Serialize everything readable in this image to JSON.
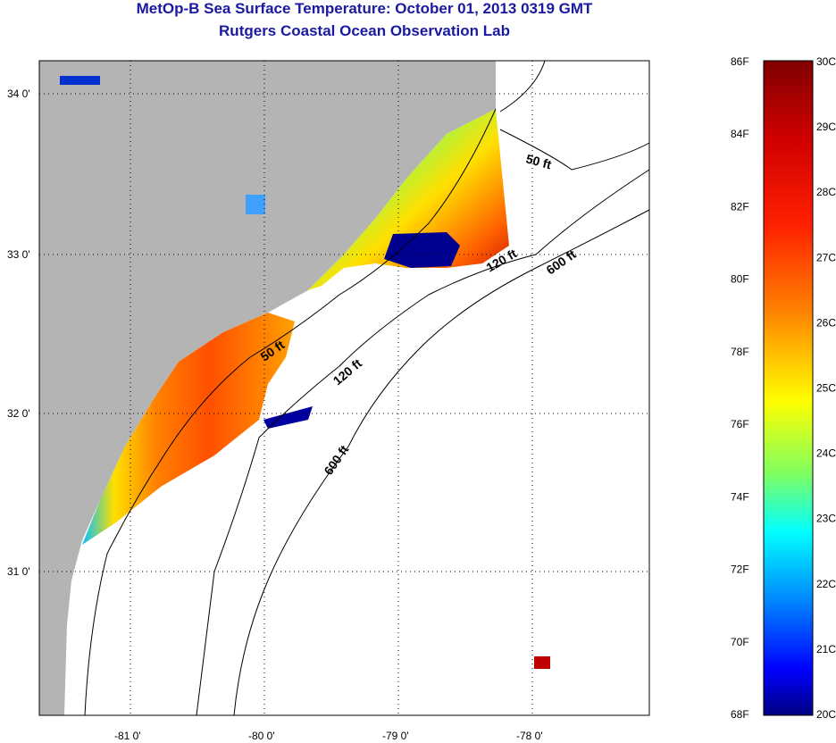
{
  "title": "MetOp-B Sea Surface Temperature:  October 01, 2013 0319 GMT",
  "subtitle": "Rutgers Coastal Ocean Observation Lab",
  "map": {
    "lat_ticks": [
      "34 0'",
      "33 0'",
      "32 0'",
      "31 0'"
    ],
    "lon_ticks": [
      "-81 0'",
      "-80 0'",
      "-79 0'",
      "-78 0'"
    ],
    "contour_labels": [
      "50 ft",
      "120 ft",
      "600 ft",
      "50 ft",
      "120 ft",
      "600 ft"
    ]
  },
  "colorbar": {
    "f_labels": [
      "86F",
      "84F",
      "82F",
      "80F",
      "78F",
      "76F",
      "74F",
      "72F",
      "70F",
      "68F"
    ],
    "c_labels": [
      "30C",
      "29C",
      "28C",
      "27C",
      "26C",
      "25C",
      "24C",
      "23C",
      "22C",
      "21C",
      "20C"
    ],
    "colors": [
      "#800000",
      "#ff0000",
      "#ff8000",
      "#ffff00",
      "#80ff80",
      "#00ffff",
      "#0080ff",
      "#0000ff",
      "#000090"
    ]
  }
}
